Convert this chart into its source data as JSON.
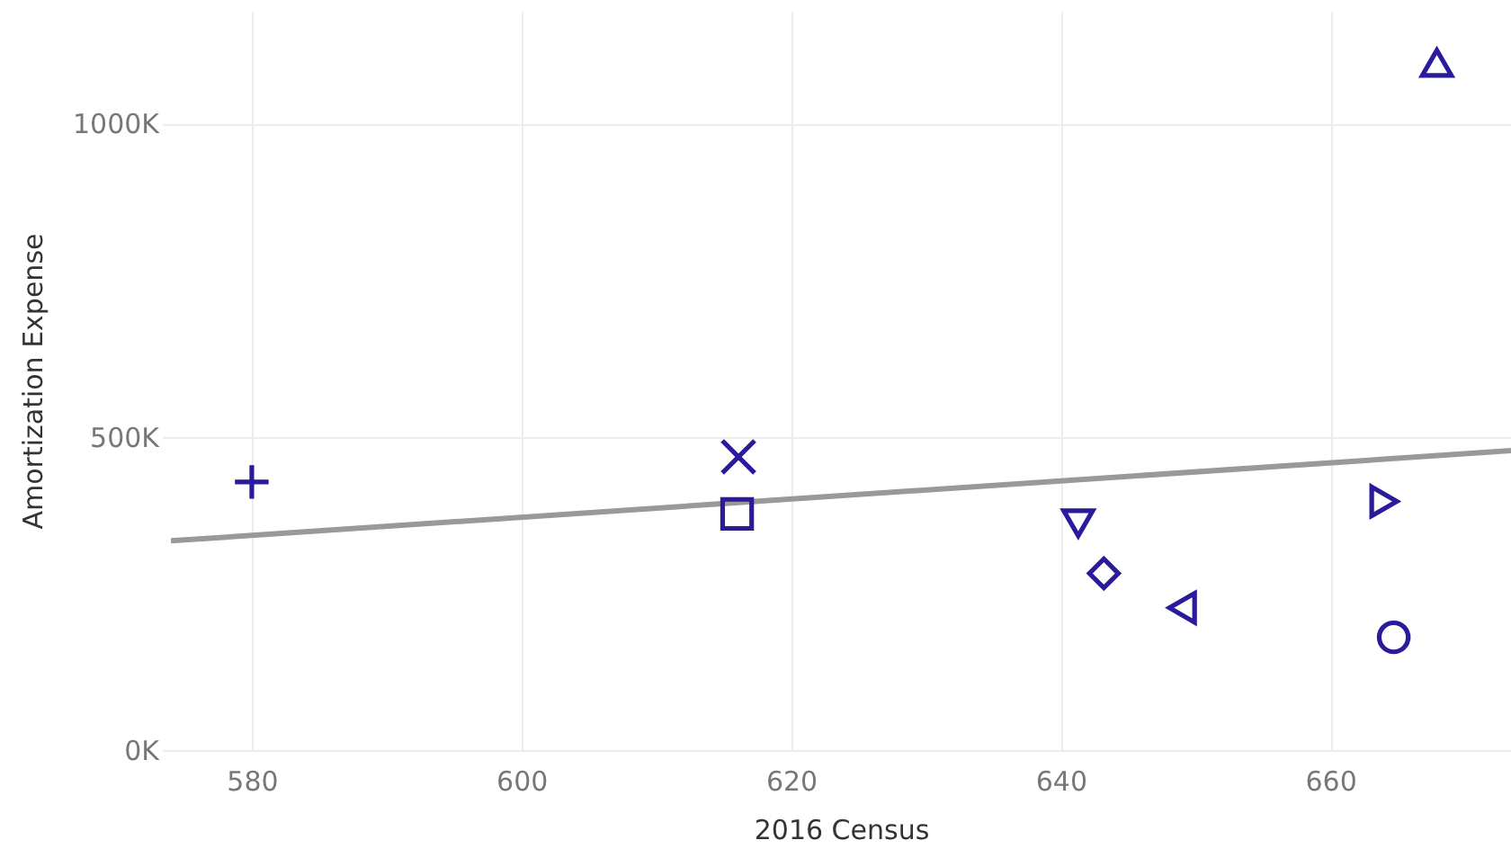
{
  "chart_data": {
    "type": "scatter",
    "xlabel": "2016 Census",
    "ylabel": "Amortization Expense",
    "xlim": [
      574,
      673.4
    ],
    "xticks": [
      580,
      600,
      620,
      640,
      660
    ],
    "ylim": [
      0,
      1180000
    ],
    "yticks": [
      {
        "value": 0,
        "label": "0K"
      },
      {
        "value": 500000,
        "label": "500K"
      },
      {
        "value": 1000000,
        "label": "1000K"
      }
    ],
    "grid": true,
    "series": [
      {
        "type": "line",
        "color": "#999999",
        "x": [
          574,
          673.4
        ],
        "values": [
          334000,
          478000
        ]
      },
      {
        "color": "#2a1a9c",
        "marker": "cross",
        "x": [
          580
        ],
        "values": [
          428000
        ]
      },
      {
        "color": "#2a1a9c",
        "marker": "x",
        "x": [
          616.1
        ],
        "values": [
          468000
        ]
      },
      {
        "color": "#2a1a9c",
        "marker": "square",
        "x": [
          616
        ],
        "values": [
          377000
        ]
      },
      {
        "color": "#2a1a9c",
        "marker": "triangle-down",
        "x": [
          641.3
        ],
        "values": [
          362000
        ]
      },
      {
        "color": "#2a1a9c",
        "marker": "diamond",
        "x": [
          643.2
        ],
        "values": [
          282000
        ]
      },
      {
        "color": "#2a1a9c",
        "marker": "triangle-left",
        "x": [
          649
        ],
        "values": [
          227000
        ]
      },
      {
        "color": "#2a1a9c",
        "marker": "triangle-right",
        "x": [
          664
        ],
        "values": [
          397000
        ]
      },
      {
        "color": "#2a1a9c",
        "marker": "circle",
        "x": [
          664.7
        ],
        "values": [
          180000
        ]
      },
      {
        "color": "#2a1a9c",
        "marker": "triangle",
        "x": [
          667.9
        ],
        "values": [
          1097000
        ]
      }
    ]
  }
}
